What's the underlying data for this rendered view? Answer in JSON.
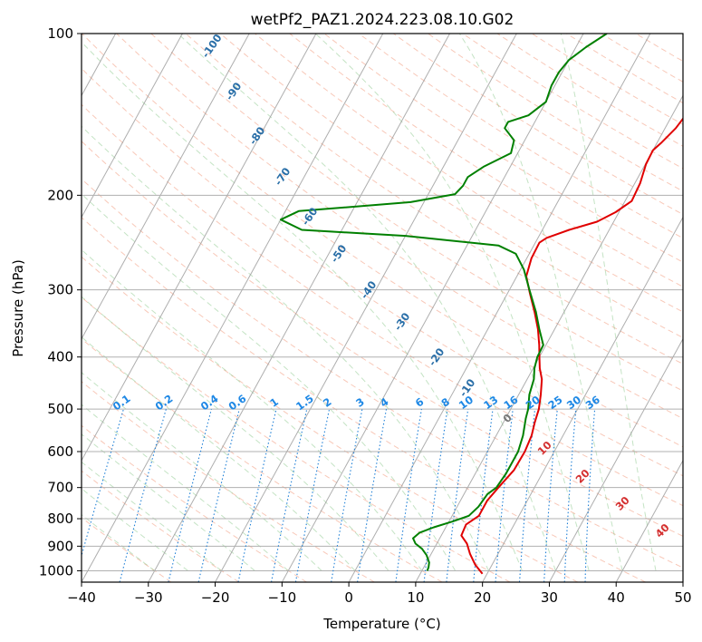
{
  "chart_data": {
    "type": "line",
    "title": "wetPf2_PAZ1.2024.223.08.10.G02",
    "xlabel": "Temperature (°C)",
    "ylabel": "Pressure (hPa)",
    "xlim": [
      -40,
      50
    ],
    "ylim": [
      1050,
      100
    ],
    "y_scale": "log",
    "x_ticks": [
      "-40",
      "-30",
      "-20",
      "-10",
      "0",
      "10",
      "20",
      "30",
      "40",
      "50"
    ],
    "y_ticks": [
      "1000",
      "900",
      "800",
      "700",
      "600",
      "500",
      "400",
      "300",
      "200",
      "100"
    ],
    "grid": true,
    "skew": "skew-T log-P",
    "series": [
      {
        "color": "#e00000",
        "points": [
          [
            19.3,
            1013
          ],
          [
            17.5,
            975
          ],
          [
            15.8,
            930
          ],
          [
            14.5,
            890
          ],
          [
            13.0,
            860
          ],
          [
            12.8,
            820
          ],
          [
            14.0,
            790
          ],
          [
            14.0,
            740
          ],
          [
            14.6,
            700
          ],
          [
            15.5,
            650
          ],
          [
            15.6,
            600
          ],
          [
            15.3,
            560
          ],
          [
            14.7,
            530
          ],
          [
            14.2,
            500
          ],
          [
            13.3,
            470
          ],
          [
            12.2,
            440
          ],
          [
            11.0,
            420
          ],
          [
            10.0,
            400
          ],
          [
            9.0,
            380
          ],
          [
            7.5,
            355
          ],
          [
            5.6,
            330
          ],
          [
            3.4,
            305
          ],
          [
            1.4,
            283
          ],
          [
            0.7,
            262
          ],
          [
            0.6,
            245
          ],
          [
            1.3,
            240
          ],
          [
            4.0,
            232
          ],
          [
            7.5,
            224
          ],
          [
            9.5,
            215
          ],
          [
            11.0,
            205
          ],
          [
            10.8,
            190
          ],
          [
            10.1,
            175
          ],
          [
            10.0,
            165
          ],
          [
            10.6,
            160
          ],
          [
            11.6,
            150
          ],
          [
            12.1,
            140
          ],
          [
            12.3,
            130
          ],
          [
            12.7,
            120
          ],
          [
            13.5,
            112
          ],
          [
            14.4,
            106
          ],
          [
            15.2,
            101
          ]
        ]
      },
      {
        "color": "#008000",
        "points": [
          [
            10.8,
            1000
          ],
          [
            10.7,
            985
          ],
          [
            10.4,
            965
          ],
          [
            9.4,
            935
          ],
          [
            8.2,
            910
          ],
          [
            6.8,
            890
          ],
          [
            6.0,
            870
          ],
          [
            6.5,
            850
          ],
          [
            8.2,
            830
          ],
          [
            10.5,
            810
          ],
          [
            12.5,
            790
          ],
          [
            13.2,
            760
          ],
          [
            13.5,
            720
          ],
          [
            14.3,
            700
          ],
          [
            14.6,
            660
          ],
          [
            14.6,
            600
          ],
          [
            14.0,
            560
          ],
          [
            13.0,
            520
          ],
          [
            12.6,
            500
          ],
          [
            11.6,
            470
          ],
          [
            11.0,
            440
          ],
          [
            10.2,
            420
          ],
          [
            9.7,
            400
          ],
          [
            9.6,
            380
          ],
          [
            7.7,
            355
          ],
          [
            5.8,
            330
          ],
          [
            3.0,
            300
          ],
          [
            0.5,
            275
          ],
          [
            -2.0,
            257
          ],
          [
            -5.3,
            248
          ],
          [
            -20.0,
            238
          ],
          [
            -36.0,
            232
          ],
          [
            -40.0,
            222
          ],
          [
            -38.0,
            214
          ],
          [
            -22.0,
            206
          ],
          [
            -16.0,
            199
          ],
          [
            -15.5,
            192
          ],
          [
            -15.5,
            185
          ],
          [
            -14.0,
            177
          ],
          [
            -11.0,
            167
          ],
          [
            -11.6,
            158
          ],
          [
            -14.0,
            150
          ],
          [
            -14.0,
            146
          ],
          [
            -11.5,
            142
          ],
          [
            -10.0,
            134
          ],
          [
            -10.5,
            125
          ],
          [
            -10.5,
            118
          ],
          [
            -10.0,
            112
          ],
          [
            -8.5,
            106
          ],
          [
            -6.5,
            100
          ]
        ]
      }
    ],
    "mixing_ratio_labels": [
      "0.1",
      "0.2",
      "0.4",
      "0.6",
      "1",
      "1.5",
      "2",
      "3",
      "4",
      "6",
      "8",
      "10",
      "13",
      "16",
      "20",
      "25",
      "30",
      "36"
    ],
    "dry_adiabat_labels": [
      "-100",
      "-90",
      "-80",
      "-70",
      "-60",
      "-50",
      "-40",
      "-30",
      "-20",
      "-10"
    ],
    "moist_adiabat_labels": [
      "0",
      "10",
      "20",
      "30",
      "40"
    ]
  }
}
